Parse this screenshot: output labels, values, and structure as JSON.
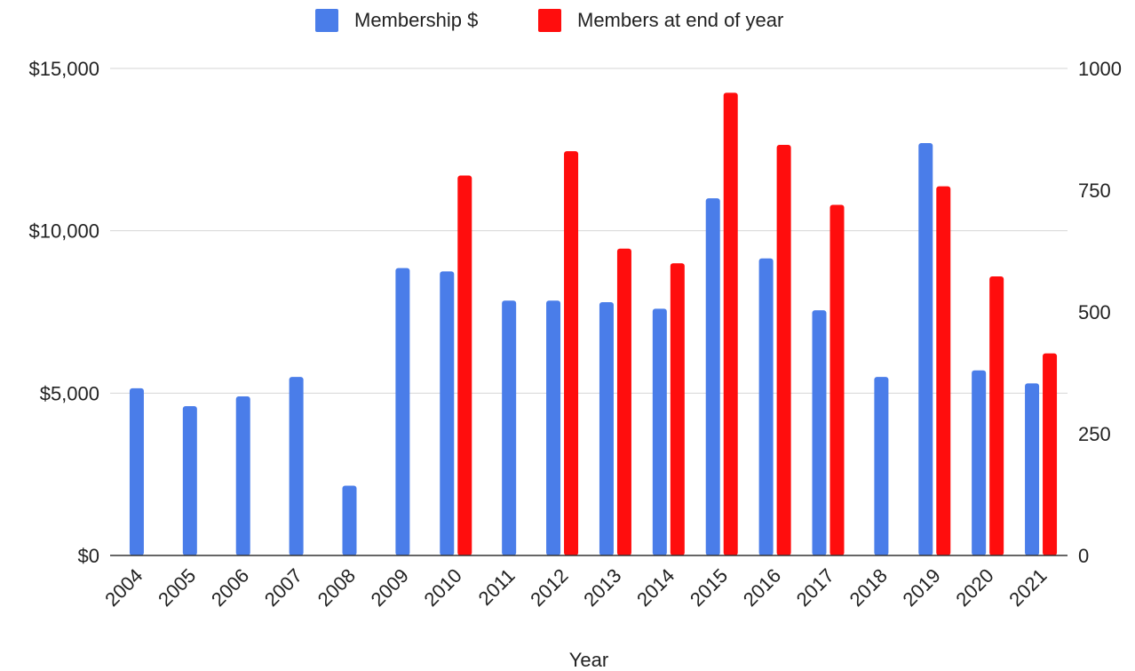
{
  "chart_data": {
    "type": "bar",
    "title": "",
    "xlabel": "Year",
    "ylabel": "",
    "y2label": "",
    "categories": [
      "2004",
      "2005",
      "2006",
      "2007",
      "2008",
      "2009",
      "2010",
      "2011",
      "2012",
      "2013",
      "2014",
      "2015",
      "2016",
      "2017",
      "2018",
      "2019",
      "2020",
      "2021"
    ],
    "series": [
      {
        "name": "Membership $",
        "axis": "left",
        "color": "#4a7de9",
        "values": [
          5150,
          4600,
          4900,
          5500,
          2150,
          8850,
          8750,
          7850,
          7850,
          7800,
          7600,
          11000,
          9150,
          7550,
          5500,
          12700,
          5700,
          5300
        ]
      },
      {
        "name": "Members at end of year",
        "axis": "right",
        "color": "#ff0d0d",
        "values": [
          null,
          null,
          null,
          null,
          null,
          null,
          780,
          null,
          830,
          630,
          600,
          950,
          843,
          720,
          null,
          758,
          573,
          415
        ]
      }
    ],
    "y_left": {
      "min": 0,
      "max": 15000,
      "ticks": [
        0,
        5000,
        10000,
        15000
      ],
      "tick_labels": [
        "$0",
        "$5,000",
        "$10,000",
        "$15,000"
      ]
    },
    "y_right": {
      "min": 0,
      "max": 1000,
      "ticks": [
        0,
        250,
        500,
        750,
        1000
      ],
      "tick_labels": [
        "0",
        "250",
        "500",
        "750",
        "1000"
      ]
    },
    "grid": true,
    "legend_position": "top-center"
  }
}
